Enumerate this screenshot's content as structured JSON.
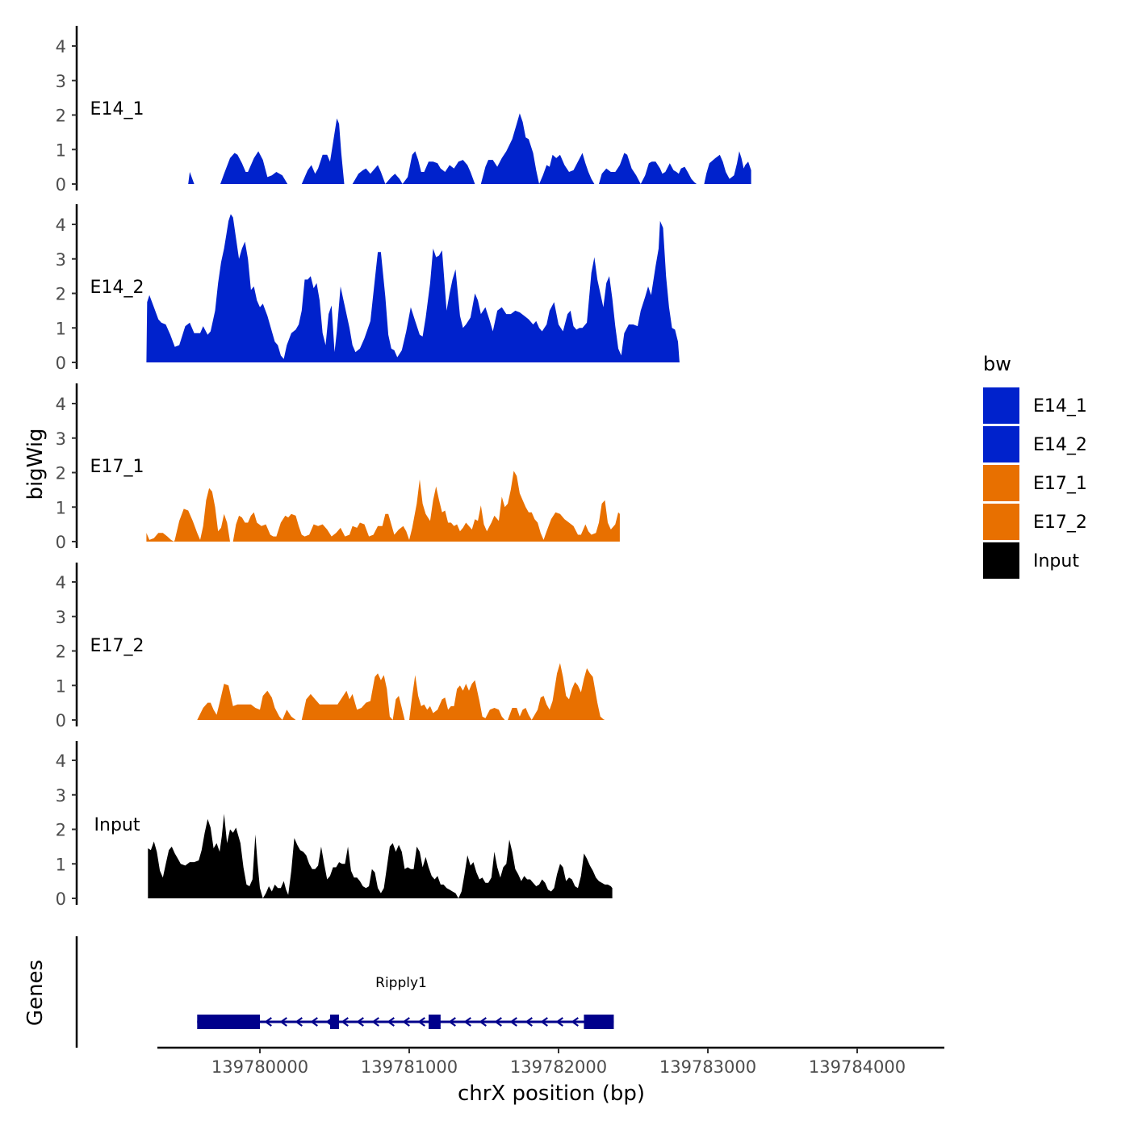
{
  "chart_data": {
    "type": "area",
    "ylabel": "bigWig",
    "genes_label": "Genes",
    "xlabel": "chrX position (bp)",
    "xlim": [
      139779250,
      139784500
    ],
    "ylim": [
      0,
      4.5
    ],
    "y_ticks": [
      "0",
      "1",
      "2",
      "3",
      "4"
    ],
    "x_ticks": [
      {
        "value": 139780000,
        "label": "139780000"
      },
      {
        "value": 139781000,
        "label": "139781000"
      },
      {
        "value": 139782000,
        "label": "139782000"
      },
      {
        "value": 139783000,
        "label": "139783000"
      },
      {
        "value": 139784000,
        "label": "139784000"
      }
    ],
    "legend": {
      "title": "bw",
      "entries": [
        {
          "label": "E14_1",
          "color": "#0022CC"
        },
        {
          "label": "E14_2",
          "color": "#0022CC"
        },
        {
          "label": "E17_1",
          "color": "#E87000"
        },
        {
          "label": "E17_2",
          "color": "#E87000"
        },
        {
          "label": "Input",
          "color": "#000000"
        }
      ]
    },
    "series": [
      {
        "name": "E14_1",
        "color": "#0022CC",
        "points": [
          [
            139779520,
            0
          ],
          [
            139779530,
            0.35
          ],
          [
            139779560,
            0
          ],
          [
            139779590,
            0
          ],
          [
            139779600,
            0
          ],
          [
            139779630,
            0
          ],
          [
            139779660,
            0
          ],
          [
            139779700,
            0
          ],
          [
            139779735,
            0
          ],
          [
            139779760,
            0.3
          ],
          [
            139779800,
            0.75
          ],
          [
            139779830,
            0.9
          ],
          [
            139779850,
            0.85
          ],
          [
            139779880,
            0.6
          ],
          [
            139779905,
            0.35
          ],
          [
            139779920,
            0.35
          ],
          [
            139779960,
            0.75
          ],
          [
            139779990,
            0.95
          ],
          [
            139780020,
            0.7
          ],
          [
            139780050,
            0.2
          ],
          [
            139780080,
            0.25
          ],
          [
            139780110,
            0.35
          ],
          [
            139780150,
            0.25
          ],
          [
            139780185,
            0
          ],
          [
            139780280,
            0
          ],
          [
            139780320,
            0.4
          ],
          [
            139780345,
            0.55
          ],
          [
            139780370,
            0.3
          ],
          [
            139780390,
            0.45
          ],
          [
            139780420,
            0.85
          ],
          [
            139780450,
            0.85
          ],
          [
            139780470,
            0.65
          ],
          [
            139780490,
            1.2
          ],
          [
            139780515,
            1.9
          ],
          [
            139780530,
            1.75
          ],
          [
            139780545,
            0.9
          ],
          [
            139780565,
            0
          ],
          [
            139780620,
            0
          ],
          [
            139780660,
            0.3
          ],
          [
            139780690,
            0.4
          ],
          [
            139780710,
            0.45
          ],
          [
            139780740,
            0.3
          ],
          [
            139780760,
            0.4
          ],
          [
            139780790,
            0.55
          ],
          [
            139780810,
            0.35
          ],
          [
            139780840,
            0
          ],
          [
            139780880,
            0.2
          ],
          [
            139780905,
            0.3
          ],
          [
            139780935,
            0.15
          ],
          [
            139780955,
            0
          ],
          [
            139780990,
            0.2
          ],
          [
            139781020,
            0.85
          ],
          [
            139781040,
            0.95
          ],
          [
            139781060,
            0.7
          ],
          [
            139781080,
            0.35
          ],
          [
            139781100,
            0.35
          ],
          [
            139781130,
            0.65
          ],
          [
            139781160,
            0.65
          ],
          [
            139781190,
            0.6
          ],
          [
            139781210,
            0.45
          ],
          [
            139781240,
            0.35
          ],
          [
            139781270,
            0.55
          ],
          [
            139781300,
            0.45
          ],
          [
            139781330,
            0.65
          ],
          [
            139781360,
            0.7
          ],
          [
            139781390,
            0.55
          ],
          [
            139781410,
            0.35
          ],
          [
            139781440,
            0
          ],
          [
            139781480,
            0
          ],
          [
            139781510,
            0.5
          ],
          [
            139781530,
            0.7
          ],
          [
            139781560,
            0.7
          ],
          [
            139781590,
            0.5
          ],
          [
            139781620,
            0.75
          ],
          [
            139781650,
            0.95
          ],
          [
            139781690,
            1.3
          ],
          [
            139781720,
            1.75
          ],
          [
            139781740,
            2.05
          ],
          [
            139781760,
            1.8
          ],
          [
            139781780,
            1.35
          ],
          [
            139781800,
            1.3
          ],
          [
            139781830,
            0.9
          ],
          [
            139781850,
            0.4
          ],
          [
            139781870,
            0
          ],
          [
            139781895,
            0.25
          ],
          [
            139781920,
            0.55
          ],
          [
            139781940,
            0.5
          ],
          [
            139781960,
            0.85
          ],
          [
            139781985,
            0.75
          ],
          [
            139782010,
            0.85
          ],
          [
            139782040,
            0.55
          ],
          [
            139782070,
            0.35
          ],
          [
            139782100,
            0.4
          ],
          [
            139782130,
            0.65
          ],
          [
            139782160,
            0.9
          ],
          [
            139782180,
            0.6
          ],
          [
            139782200,
            0.35
          ],
          [
            139782220,
            0.15
          ],
          [
            139782240,
            0
          ],
          [
            139782270,
            0
          ],
          [
            139782290,
            0.3
          ],
          [
            139782320,
            0.45
          ],
          [
            139782350,
            0.35
          ],
          [
            139782380,
            0.35
          ],
          [
            139782410,
            0.55
          ],
          [
            139782440,
            0.9
          ],
          [
            139782460,
            0.85
          ],
          [
            139782490,
            0.45
          ],
          [
            139782520,
            0.25
          ],
          [
            139782550,
            0
          ],
          [
            139782580,
            0.25
          ],
          [
            139782605,
            0.6
          ],
          [
            139782625,
            0.65
          ],
          [
            139782650,
            0.65
          ],
          [
            139782680,
            0.45
          ],
          [
            139782695,
            0.3
          ],
          [
            139782715,
            0.35
          ],
          [
            139782745,
            0.6
          ],
          [
            139782770,
            0.4
          ],
          [
            139782790,
            0.35
          ],
          [
            139782805,
            0.3
          ],
          [
            139782820,
            0.45
          ],
          [
            139782845,
            0.5
          ],
          [
            139782865,
            0.35
          ],
          [
            139782890,
            0.15
          ],
          [
            139782910,
            0.05
          ],
          [
            139782925,
            0
          ],
          [
            139782950,
            0
          ],
          [
            139782975,
            0
          ],
          [
            139782990,
            0.3
          ],
          [
            139783010,
            0.6
          ],
          [
            139783050,
            0.75
          ],
          [
            139783080,
            0.85
          ],
          [
            139783100,
            0.65
          ],
          [
            139783120,
            0.35
          ],
          [
            139783145,
            0.15
          ],
          [
            139783175,
            0.25
          ],
          [
            139783195,
            0.6
          ],
          [
            139783210,
            0.95
          ],
          [
            139783225,
            0.75
          ],
          [
            139783240,
            0.45
          ],
          [
            139783250,
            0.55
          ],
          [
            139783270,
            0.65
          ],
          [
            139783290,
            0.4
          ]
        ]
      },
      {
        "name": "E14_2",
        "color": "#0022CC",
        "points": []
      },
      {
        "name": "E17_1",
        "color": "#E87000",
        "points": []
      },
      {
        "name": "E17_2",
        "color": "#E87000",
        "points": []
      },
      {
        "name": "Input",
        "color": "#000000",
        "points": []
      }
    ],
    "genes": [
      {
        "name": "Ripply1",
        "start": 139779580,
        "end": 139782370,
        "strand": "-",
        "exons": [
          [
            139779580,
            139780000
          ],
          [
            139780470,
            139780530
          ],
          [
            139781130,
            139781210
          ],
          [
            139782170,
            139782370
          ]
        ]
      }
    ]
  }
}
